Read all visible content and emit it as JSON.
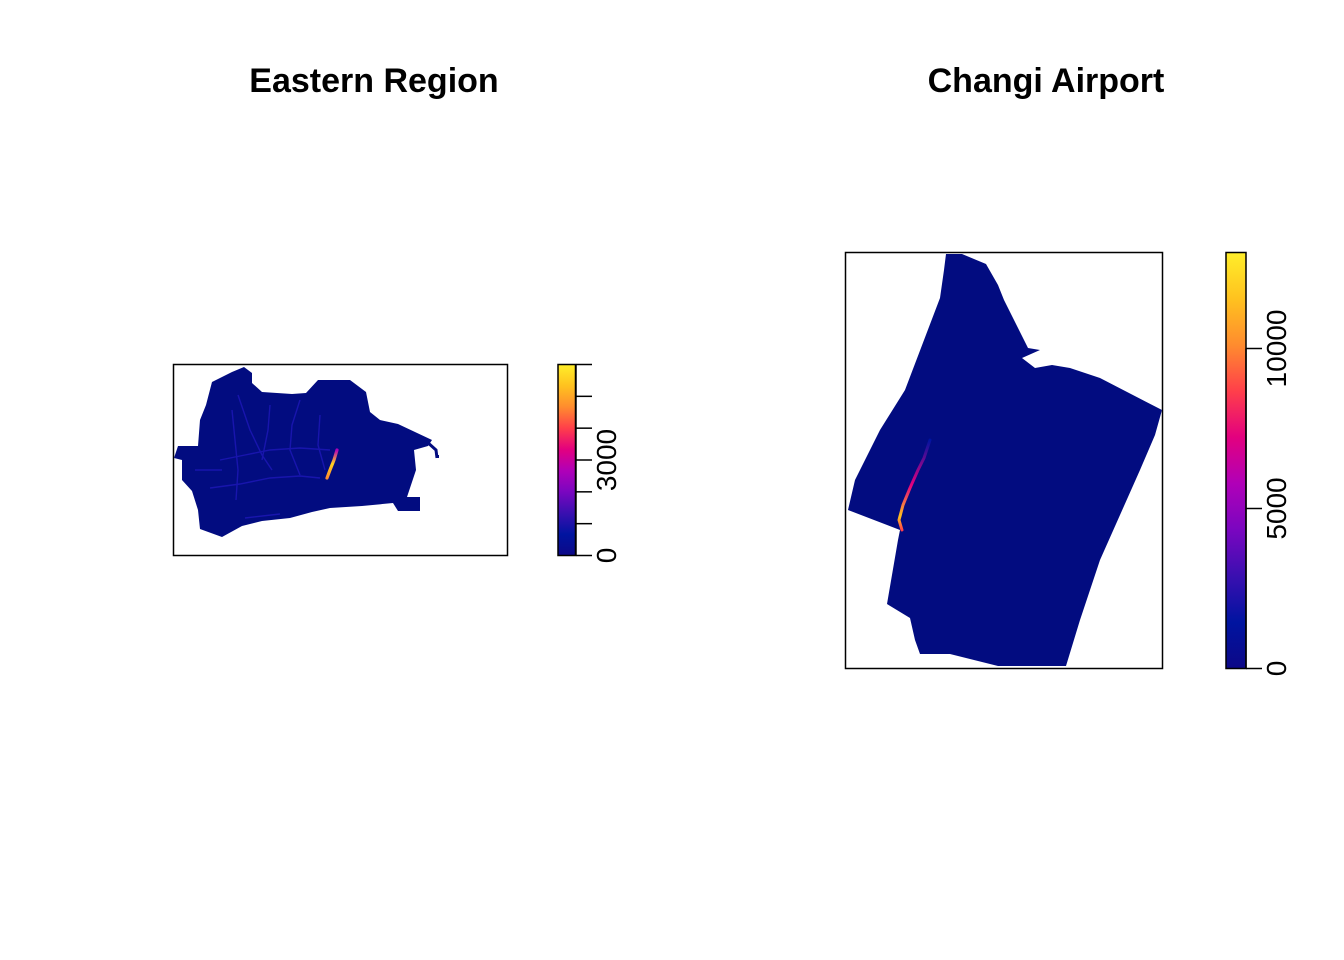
{
  "chart_data": [
    {
      "type": "heatmap",
      "title": "Eastern Region",
      "xlabel": "",
      "ylabel": "",
      "legend": {
        "placement": "right",
        "range": [
          0,
          6000
        ],
        "ticks": [
          0,
          1000,
          2000,
          3000,
          4000,
          5000,
          6000
        ],
        "tick_labels": [
          "0",
          "",
          "",
          "3000",
          "",
          "",
          ""
        ]
      },
      "colormap": [
        "#0d0887",
        "#0014a0",
        "#3a0fb0",
        "#7a06c0",
        "#b000b8",
        "#e3007f",
        "#ff3f4a",
        "#ff8c2e",
        "#ffc21f",
        "#ffee2a"
      ],
      "features": {
        "background_value": 0,
        "hotspot": "linear hotspot near the centre-right of the region reaching the top of the scale",
        "road_network": "faint higher-density lines across the western part"
      }
    },
    {
      "type": "heatmap",
      "title": "Changi Airport",
      "xlabel": "",
      "ylabel": "",
      "legend": {
        "placement": "right",
        "range": [
          0,
          13000
        ],
        "ticks": [
          0,
          5000,
          10000
        ],
        "tick_labels": [
          "0",
          "5000",
          "10000"
        ]
      },
      "colormap": [
        "#0d0887",
        "#0014a0",
        "#3a0fb0",
        "#7a06c0",
        "#b000b8",
        "#e3007f",
        "#ff3f4a",
        "#ff8c2e",
        "#ffc21f",
        "#ffee2a"
      ],
      "features": {
        "background_value": 0,
        "hotspot": "thin diagonal line along the western edge peaking near the bottom"
      }
    }
  ]
}
